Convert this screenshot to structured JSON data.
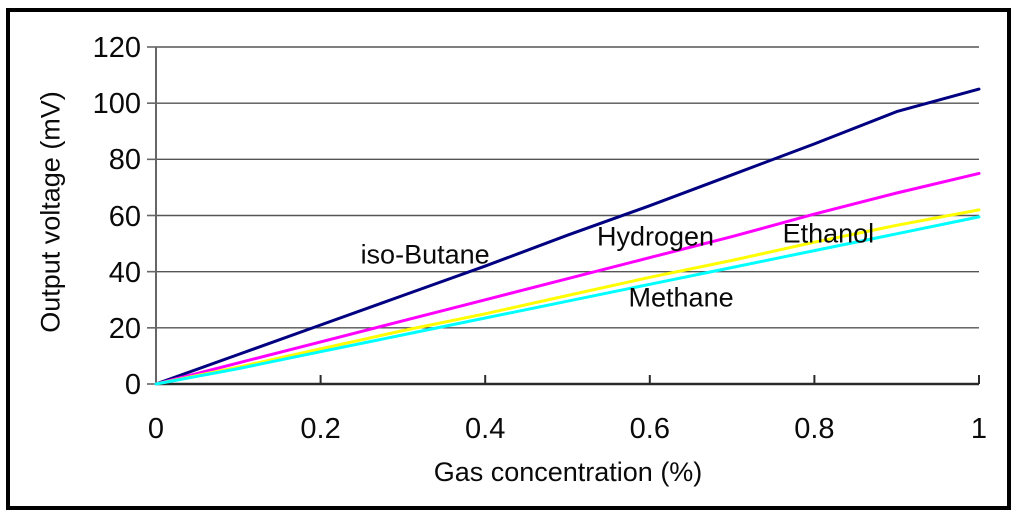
{
  "figure": {
    "background_color": "#ffffff",
    "frame_border_color": "#000000"
  },
  "chart_data": {
    "type": "line",
    "title": "",
    "xlabel": "Gas concentration (%)",
    "ylabel": "Output voltage (mV)",
    "xlim": [
      0,
      1
    ],
    "ylim": [
      0,
      120
    ],
    "grid": "horizontal-only",
    "legend_position": "none (inline labels on plot)",
    "gridline_color": "#555555",
    "y_axis_color": "#666666",
    "x_axis_color": "#2a2a2a",
    "text_color": "#0a0a0a",
    "x_ticks": [
      {
        "value": 0,
        "label": "0"
      },
      {
        "value": 0.2,
        "label": "0.2"
      },
      {
        "value": 0.4,
        "label": "0.4"
      },
      {
        "value": 0.6,
        "label": "0.6"
      },
      {
        "value": 0.8,
        "label": "0.8"
      },
      {
        "value": 1,
        "label": "1"
      }
    ],
    "y_ticks": [
      {
        "value": 0,
        "label": "0"
      },
      {
        "value": 20,
        "label": "20"
      },
      {
        "value": 40,
        "label": "40"
      },
      {
        "value": 60,
        "label": "60"
      },
      {
        "value": 80,
        "label": "80"
      },
      {
        "value": 100,
        "label": "100"
      },
      {
        "value": 120,
        "label": "120"
      }
    ],
    "x": [
      0,
      0.1,
      0.2,
      0.3,
      0.4,
      0.5,
      0.6,
      0.7,
      0.8,
      0.9,
      1.0
    ],
    "series": [
      {
        "name": "iso-Butane",
        "color": "#000080",
        "values": [
          0,
          10.5,
          21,
          31.5,
          42,
          53,
          63.5,
          74.5,
          85.5,
          97,
          105
        ]
      },
      {
        "name": "Hydrogen",
        "color": "#FF00FF",
        "values": [
          0,
          7.5,
          15,
          22.5,
          30,
          37.5,
          45,
          52.5,
          60.5,
          68,
          75
        ]
      },
      {
        "name": "Ethanol",
        "color": "#FFFF00",
        "values": [
          0,
          6,
          12.5,
          19,
          25,
          31.5,
          38,
          44,
          50.5,
          56.5,
          62
        ]
      },
      {
        "name": "Methane",
        "color": "#00FFFF",
        "values": [
          0,
          5.5,
          11.5,
          17.5,
          23.5,
          29.5,
          35.5,
          41.5,
          47.5,
          53.5,
          59.5
        ]
      }
    ],
    "annotations": [
      {
        "text": "iso-Butane",
        "x": 0.327,
        "y": 46
      },
      {
        "text": "Hydrogen",
        "x": 0.607,
        "y": 52.5
      },
      {
        "text": "Ethanol",
        "x": 0.817,
        "y": 53.5
      },
      {
        "text": "Methane",
        "x": 0.638,
        "y": 30.5
      }
    ]
  }
}
